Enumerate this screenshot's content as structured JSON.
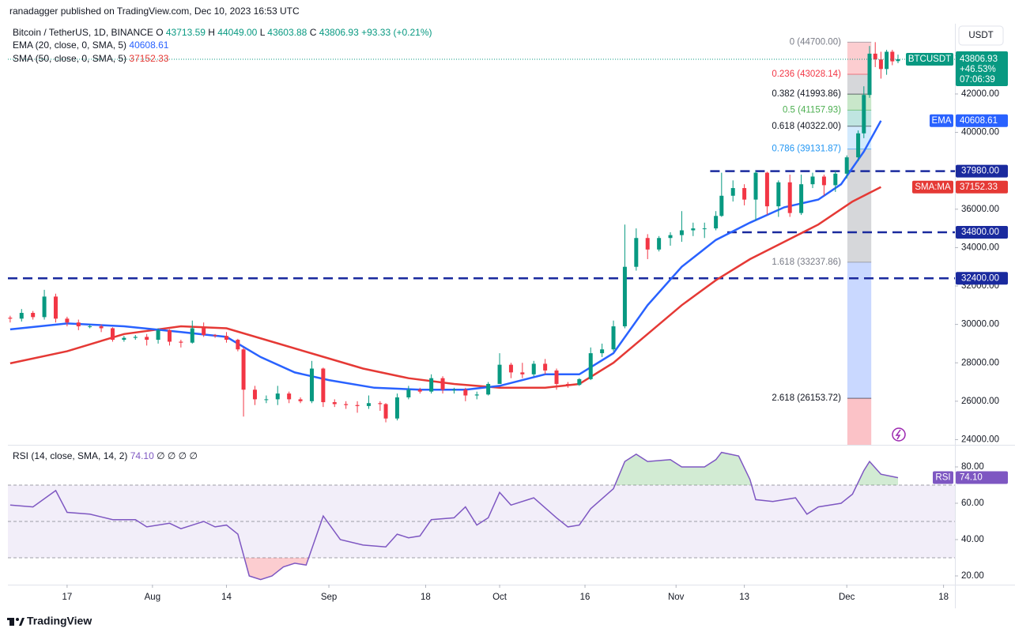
{
  "header": {
    "published": "ranadagger published on TradingView.com, Dec 10, 2023 16:53 UTC",
    "brand": "TradingView"
  },
  "legend": {
    "symbol": "Bitcoin / TetherUS, 1D, BINANCE",
    "ohlc": [
      {
        "label": "O",
        "value": "43713.59"
      },
      {
        "label": "H",
        "value": "44049.00"
      },
      {
        "label": "L",
        "value": "43603.88"
      },
      {
        "label": "C",
        "value": "43806.93"
      }
    ],
    "change": "+93.33 (+0.21%)",
    "ema": {
      "label": "EMA (20, close, 0, SMA, 5)",
      "value": "40608.61"
    },
    "sma": {
      "label": "SMA (50, close, 0, SMA, 5)",
      "value": "37152.33"
    },
    "rsi": {
      "label": "RSI (14, close, SMA, 14, 2)",
      "value": "74.10",
      "extra": "∅ ∅ ∅ ∅"
    }
  },
  "chart_data": {
    "type": "candlestick",
    "currency": "USDT",
    "up_color": "#089981",
    "down_color": "#f23645",
    "xlim": [
      -0.4,
      166
    ],
    "xticks": [
      {
        "value": 10,
        "label": "17"
      },
      {
        "value": 25,
        "label": "Aug"
      },
      {
        "value": 38,
        "label": "14"
      },
      {
        "value": 56,
        "label": "Sep"
      },
      {
        "value": 73,
        "label": "18"
      },
      {
        "value": 86,
        "label": "Oct"
      },
      {
        "value": 101,
        "label": "16"
      },
      {
        "value": 117,
        "label": "Nov"
      },
      {
        "value": 129,
        "label": "13"
      },
      {
        "value": 147,
        "label": "Dec"
      },
      {
        "value": 164,
        "label": "18"
      }
    ],
    "ylim": [
      23730,
      45660
    ],
    "yticks": [
      {
        "value": 24000,
        "label": "24000.00"
      },
      {
        "value": 26000,
        "label": "26000.00"
      },
      {
        "value": 28000,
        "label": "28000.00"
      },
      {
        "value": 30000,
        "label": "30000.00"
      },
      {
        "value": 32000,
        "label": "32000.00"
      },
      {
        "value": 34000,
        "label": "34000.00"
      },
      {
        "value": 36000,
        "label": "36000.00"
      },
      {
        "value": 38000,
        "label": "38000.00"
      },
      {
        "value": 40000,
        "label": "40000.00"
      },
      {
        "value": 42000,
        "label": "42000.00"
      },
      {
        "value": 44000,
        "label": "44000.00"
      }
    ],
    "candles": [
      [
        0,
        30350,
        30450,
        30100,
        30300
      ],
      [
        2,
        30300,
        30800,
        30150,
        30600
      ],
      [
        4,
        30600,
        30700,
        30250,
        30380
      ],
      [
        6,
        30380,
        31800,
        30250,
        31450
      ],
      [
        8,
        31450,
        31600,
        30100,
        30300
      ],
      [
        10,
        30300,
        30400,
        29900,
        30100
      ],
      [
        12,
        30100,
        30250,
        29700,
        29900
      ],
      [
        14,
        29900,
        30000,
        29800,
        29900
      ],
      [
        16,
        29900,
        30000,
        29600,
        29800
      ],
      [
        18,
        29800,
        29850,
        29100,
        29200
      ],
      [
        20,
        29200,
        29400,
        29100,
        29300
      ],
      [
        22,
        29300,
        29450,
        29200,
        29350
      ],
      [
        24,
        29350,
        29500,
        28900,
        29200
      ],
      [
        26,
        29200,
        29800,
        29000,
        29700
      ],
      [
        28,
        29700,
        29750,
        28900,
        29100
      ],
      [
        30,
        29100,
        29200,
        28800,
        29050
      ],
      [
        32,
        29050,
        30200,
        29000,
        29800
      ],
      [
        34,
        29800,
        30100,
        29350,
        29450
      ],
      [
        36,
        29450,
        29500,
        29300,
        29400
      ],
      [
        38,
        29400,
        29600,
        29050,
        29200
      ],
      [
        40,
        29200,
        29250,
        28600,
        28700
      ],
      [
        41,
        28700,
        28800,
        25200,
        26600
      ],
      [
        43,
        26600,
        26800,
        25800,
        26100
      ],
      [
        45,
        26100,
        26300,
        25900,
        26100
      ],
      [
        47,
        26100,
        26800,
        25800,
        26400
      ],
      [
        49,
        26400,
        26500,
        25900,
        26100
      ],
      [
        51,
        26100,
        26200,
        25900,
        26000
      ],
      [
        53,
        26000,
        28100,
        25900,
        27700
      ],
      [
        55,
        27700,
        27750,
        25700,
        25950
      ],
      [
        57,
        25950,
        26100,
        25700,
        25850
      ],
      [
        59,
        25850,
        26000,
        25600,
        25800
      ],
      [
        61,
        25800,
        26000,
        25400,
        25750
      ],
      [
        63,
        25750,
        26300,
        25600,
        25900
      ],
      [
        65,
        25900,
        26000,
        25500,
        25850
      ],
      [
        66,
        25850,
        25900,
        24900,
        25100
      ],
      [
        68,
        25100,
        26400,
        25000,
        26200
      ],
      [
        70,
        26200,
        26800,
        26100,
        26600
      ],
      [
        72,
        26600,
        26700,
        26400,
        26500
      ],
      [
        74,
        26500,
        27400,
        26400,
        27200
      ],
      [
        76,
        27200,
        27300,
        26400,
        26600
      ],
      [
        78,
        26600,
        26700,
        26400,
        26600
      ],
      [
        80,
        26600,
        26700,
        26000,
        26300
      ],
      [
        82,
        26300,
        26500,
        26100,
        26350
      ],
      [
        84,
        26350,
        27000,
        26300,
        26900
      ],
      [
        86,
        26900,
        28500,
        26900,
        27900
      ],
      [
        88,
        27900,
        28000,
        27200,
        27500
      ],
      [
        90,
        27500,
        28000,
        27200,
        27400
      ],
      [
        92,
        27400,
        28100,
        27300,
        27950
      ],
      [
        94,
        27950,
        28200,
        27400,
        27600
      ],
      [
        96,
        27600,
        27700,
        26600,
        26900
      ],
      [
        98,
        26900,
        27000,
        26700,
        26850
      ],
      [
        100,
        26850,
        27200,
        26800,
        27150
      ],
      [
        102,
        27150,
        28800,
        27100,
        28500
      ],
      [
        104,
        28500,
        29000,
        28300,
        28700
      ],
      [
        106,
        28700,
        30200,
        28600,
        29900
      ],
      [
        108,
        29900,
        35200,
        29800,
        33000
      ],
      [
        110,
        33000,
        35000,
        32800,
        34500
      ],
      [
        112,
        34500,
        34700,
        33400,
        33900
      ],
      [
        114,
        33900,
        34600,
        33800,
        34500
      ],
      [
        116,
        34500,
        34800,
        34100,
        34650
      ],
      [
        118,
        34650,
        35900,
        34300,
        34900
      ],
      [
        120,
        34900,
        35300,
        34600,
        35000
      ],
      [
        122,
        35000,
        35300,
        34500,
        35000
      ],
      [
        124,
        35000,
        35900,
        34900,
        35650
      ],
      [
        125,
        35650,
        37900,
        35600,
        36700
      ],
      [
        127,
        36700,
        37500,
        36400,
        37100
      ],
      [
        129,
        37100,
        37300,
        36200,
        36500
      ],
      [
        131,
        36500,
        38000,
        35400,
        37900
      ],
      [
        133,
        37900,
        37950,
        35700,
        36150
      ],
      [
        135,
        36150,
        37500,
        35600,
        37400
      ],
      [
        137,
        37400,
        37800,
        35600,
        35800
      ],
      [
        139,
        35800,
        37800,
        35700,
        37300
      ],
      [
        141,
        37300,
        37900,
        37100,
        37700
      ],
      [
        143,
        37700,
        37800,
        36700,
        37250
      ],
      [
        145,
        37250,
        38000,
        36900,
        37850
      ],
      [
        147,
        37850,
        38800,
        37600,
        38700
      ],
      [
        149,
        38700,
        40100,
        38500,
        39950
      ],
      [
        150,
        39950,
        42400,
        39700,
        41950
      ],
      [
        151,
        41950,
        44500,
        41800,
        44100
      ],
      [
        152,
        44100,
        44700,
        43400,
        43800
      ],
      [
        153,
        43800,
        44200,
        42800,
        43300
      ],
      [
        154,
        43300,
        44300,
        43000,
        44200
      ],
      [
        155,
        44200,
        44300,
        43500,
        43700
      ],
      [
        156,
        43713.59,
        44049,
        43603.88,
        43806.93
      ]
    ],
    "ema": {
      "name": "EMA",
      "color": "#2962ff",
      "value_label": "40608.61",
      "x": [
        0,
        10,
        20,
        30,
        38,
        44,
        50,
        56,
        64,
        72,
        80,
        86,
        94,
        100,
        106,
        112,
        118,
        124,
        130,
        136,
        142,
        146,
        150,
        153
      ],
      "values": [
        29740,
        30050,
        29900,
        29600,
        29350,
        28300,
        27500,
        27100,
        26700,
        26600,
        26600,
        26800,
        27400,
        27400,
        28500,
        31000,
        33000,
        34400,
        35300,
        36100,
        36500,
        37300,
        39000,
        40608.61
      ]
    },
    "sma": {
      "name": "SMA:MA",
      "color": "#e53935",
      "value_label": "37152.33",
      "x": [
        0,
        10,
        20,
        30,
        38,
        46,
        54,
        62,
        70,
        78,
        86,
        94,
        100,
        106,
        112,
        118,
        124,
        130,
        136,
        142,
        148,
        153
      ],
      "values": [
        27970,
        28600,
        29500,
        29900,
        29800,
        29100,
        28400,
        27700,
        27200,
        26900,
        26700,
        26700,
        26900,
        28000,
        29500,
        31000,
        32300,
        33400,
        34300,
        35200,
        36400,
        37152.33
      ]
    },
    "levels": [
      {
        "value": 37980,
        "label": "37980.00",
        "from": 123
      },
      {
        "value": 34800,
        "label": "34800.00",
        "from": 126
      },
      {
        "value": 32400,
        "label": "32400.00",
        "from": -0.4
      }
    ],
    "last_price": {
      "name": "BTCUSDT",
      "value": 43806.93,
      "label": "43806.93",
      "change": "+46.53%",
      "countdown": "07:06:39"
    },
    "fib": {
      "x0": 147.1,
      "x1": 151.3,
      "levels": [
        {
          "value": 44700,
          "label": "0 (44700.00)",
          "color": "#787b86"
        },
        {
          "value": 43028.14,
          "label": "0.236 (43028.14)",
          "color": "#f23645"
        },
        {
          "value": 41993.86,
          "label": "0.382 (41993.86)",
          "color": "#131722"
        },
        {
          "value": 41157.93,
          "label": "0.5 (41157.93)",
          "color": "#4caf50"
        },
        {
          "value": 40322.0,
          "label": "0.618 (40322.00)",
          "color": "#131722"
        },
        {
          "value": 39131.87,
          "label": "0.786 (39131.87)",
          "color": "#2196f3"
        },
        {
          "value": 33237.86,
          "label": "1.618 (33237.86)",
          "color": "#787b86"
        },
        {
          "value": 26153.72,
          "label": "2.618 (26153.72)",
          "color": "#131722"
        }
      ]
    },
    "rsi": {
      "name": "RSI",
      "color": "#7e57c2",
      "value_label": "74.10",
      "ylim": [
        15.2,
        91.3
      ],
      "yticks": [
        {
          "value": 20,
          "label": "20.00"
        },
        {
          "value": 40,
          "label": "40.00"
        },
        {
          "value": 60,
          "label": "60.00"
        },
        {
          "value": 80,
          "label": "80.00"
        }
      ],
      "bands": [
        30,
        50,
        70
      ],
      "x": [
        0,
        4,
        8,
        10,
        14,
        18,
        22,
        24,
        28,
        30,
        34,
        36,
        38,
        40,
        42,
        44,
        46,
        48,
        50,
        52,
        55,
        58,
        62,
        66,
        68,
        70,
        72,
        74,
        78,
        80,
        82,
        84,
        86,
        88,
        92,
        96,
        98,
        100,
        102,
        106,
        108,
        110,
        112,
        116,
        118,
        122,
        124,
        125,
        128,
        130,
        131,
        134,
        138,
        140,
        142,
        146,
        148,
        150,
        151,
        153,
        156
      ],
      "values": [
        59,
        58,
        67,
        55,
        54,
        51,
        51,
        47,
        49,
        46,
        50,
        47,
        48,
        43,
        20,
        18,
        20,
        25,
        27,
        26,
        53,
        40,
        37,
        36,
        43,
        41,
        42,
        51,
        52,
        58,
        48,
        52,
        66,
        59,
        63,
        52,
        47,
        48,
        57,
        68,
        83,
        87,
        83,
        84,
        80,
        80,
        84,
        88,
        86,
        73,
        62,
        61,
        63,
        54,
        58,
        60,
        65,
        78,
        83,
        76,
        74.1
      ]
    }
  }
}
